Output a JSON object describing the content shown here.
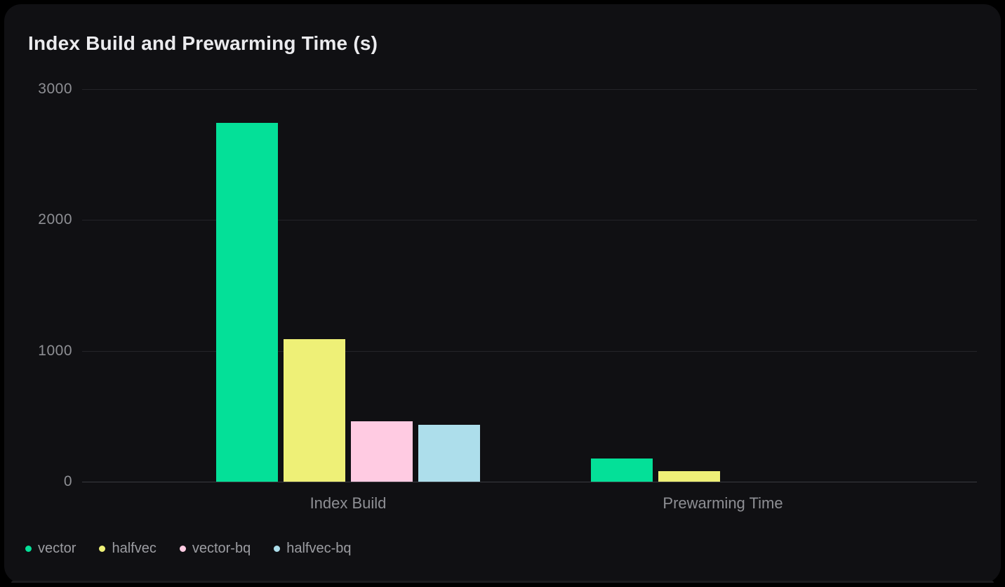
{
  "chart": {
    "title": "Index Build and Prewarming Time (s)"
  },
  "chart_data": {
    "type": "bar",
    "title": "Index Build and Prewarming Time (s)",
    "categories": [
      "Index Build",
      "Prewarming Time"
    ],
    "series": [
      {
        "name": "vector",
        "color": "#04e098",
        "values": [
          2740,
          175
        ]
      },
      {
        "name": "halfvec",
        "color": "#eef077",
        "values": [
          1090,
          78
        ]
      },
      {
        "name": "vector-bq",
        "color": "#ffcbe2",
        "values": [
          462,
          null
        ]
      },
      {
        "name": "halfvec-bq",
        "color": "#addeeb",
        "values": [
          435,
          null
        ]
      }
    ],
    "xlabel": "",
    "ylabel": "",
    "ylim": [
      0,
      3000
    ],
    "yticks": [
      0,
      1000,
      2000,
      3000
    ],
    "grid": "horizontal",
    "legend_position": "bottom-left"
  },
  "colors": {
    "page_background": "#000000",
    "card_background": "#101013",
    "title_text": "#ebebee",
    "axis_text": "#8e8f94",
    "legend_text": "#9c9da2",
    "gridline": "#242428",
    "zero_line": "#3a3b40"
  }
}
